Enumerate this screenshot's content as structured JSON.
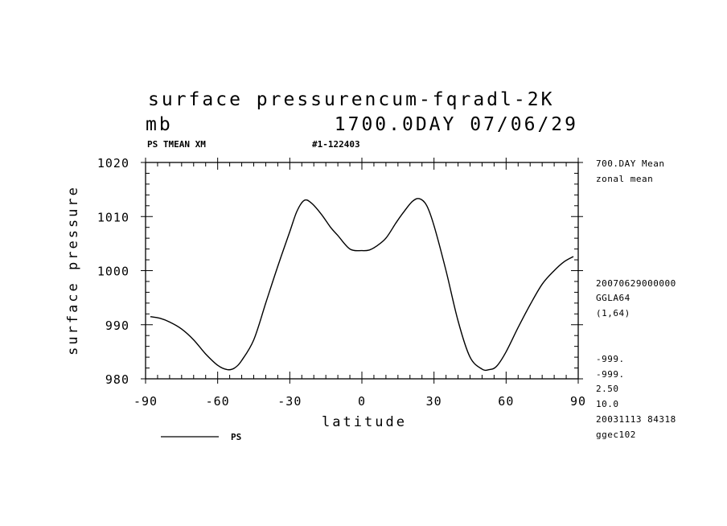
{
  "title": {
    "line1": "surface pressurencum-fqradl-2K",
    "unit": "mb",
    "day_date": "1700.0DAY 07/06/29"
  },
  "header": {
    "left": "PS TMEAN XM",
    "center": "#1-122403"
  },
  "right_panel": {
    "top": [
      "700.DAY Mean",
      "zonal mean"
    ],
    "middle": [
      "20070629000000",
      "GGLA64",
      "(1,64)"
    ],
    "bottom": [
      "-999.",
      "-999.",
      "2.50",
      "10.0",
      "20031113  84318",
      "ggec102"
    ]
  },
  "legend": {
    "label": "PS"
  },
  "chart_data": {
    "type": "line",
    "xlabel": "latitude",
    "ylabel": "surface pressure",
    "xlim": [
      -90,
      90
    ],
    "ylim": [
      980,
      1020
    ],
    "xticks": [
      -90,
      -60,
      -30,
      0,
      30,
      60,
      90
    ],
    "yticks": [
      980,
      990,
      1000,
      1010,
      1020
    ],
    "series": [
      {
        "name": "PS",
        "x": [
          -88,
          -84,
          -80,
          -75,
          -70,
          -65,
          -60,
          -56,
          -53,
          -50,
          -45,
          -40,
          -35,
          -30,
          -27,
          -24,
          -21,
          -17,
          -13,
          -10,
          -5,
          0,
          3,
          6,
          10,
          14,
          17,
          21,
          24,
          27,
          30,
          35,
          40,
          45,
          50,
          53,
          56,
          60,
          65,
          70,
          75,
          80,
          84,
          88
        ],
        "values": [
          991.5,
          991.2,
          990.5,
          989.2,
          987.2,
          984.6,
          982.5,
          981.7,
          982.0,
          983.4,
          987.2,
          994.0,
          1000.8,
          1007.2,
          1011.0,
          1013.0,
          1012.5,
          1010.5,
          1008.0,
          1006.5,
          1004.0,
          1003.7,
          1003.8,
          1004.5,
          1006.0,
          1008.7,
          1010.6,
          1012.8,
          1013.3,
          1012.0,
          1008.3,
          1000.0,
          990.7,
          984.0,
          981.8,
          981.7,
          982.3,
          985.0,
          989.5,
          993.7,
          997.5,
          1000.0,
          1001.6,
          1002.6
        ]
      }
    ]
  }
}
